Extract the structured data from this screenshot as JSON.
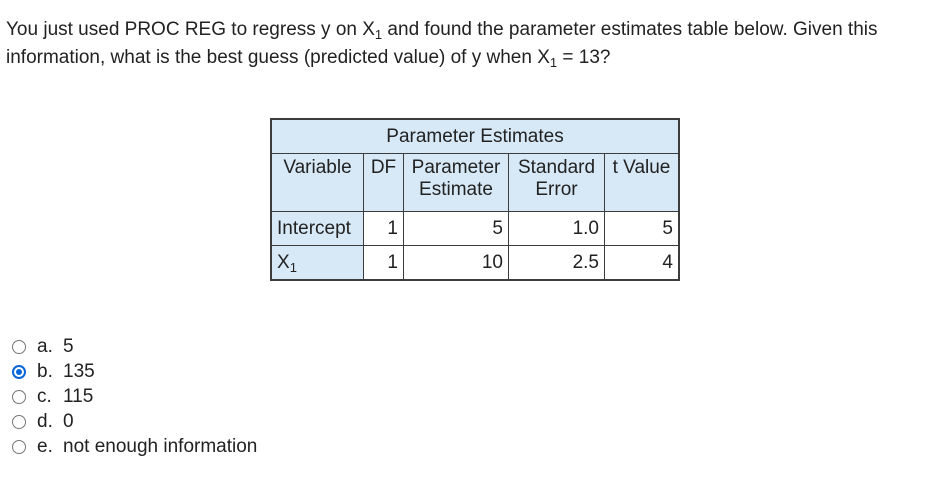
{
  "question": {
    "part1": "You just used PROC REG to regress y on X",
    "sub1": "1",
    "part2": " and found the parameter estimates table below. Given this information, what is the best guess (predicted value) of y when X",
    "sub2": "1",
    "part3": " = 13?"
  },
  "table": {
    "caption": "Parameter Estimates",
    "headers": {
      "variable": "Variable",
      "df": "DF",
      "estimate_line1": "Parameter",
      "estimate_line2": "Estimate",
      "se_line1": "Standard",
      "se_line2": "Error",
      "t": "t Value"
    },
    "rows": [
      {
        "variable": "Intercept",
        "variable_sub": "",
        "df": "1",
        "estimate": "5",
        "se": "1.0",
        "t": "5"
      },
      {
        "variable": "X",
        "variable_sub": "1",
        "df": "1",
        "estimate": "10",
        "se": "2.5",
        "t": "4"
      }
    ]
  },
  "options": [
    {
      "letter": "a.",
      "text": "5",
      "selected": false
    },
    {
      "letter": "b.",
      "text": "135",
      "selected": true
    },
    {
      "letter": "c.",
      "text": "115",
      "selected": false
    },
    {
      "letter": "d.",
      "text": "0",
      "selected": false
    },
    {
      "letter": "e.",
      "text": "not enough information",
      "selected": false
    }
  ],
  "colors": {
    "header_bg": "#d7e9f7",
    "radio_selected": "#0b66d8"
  }
}
